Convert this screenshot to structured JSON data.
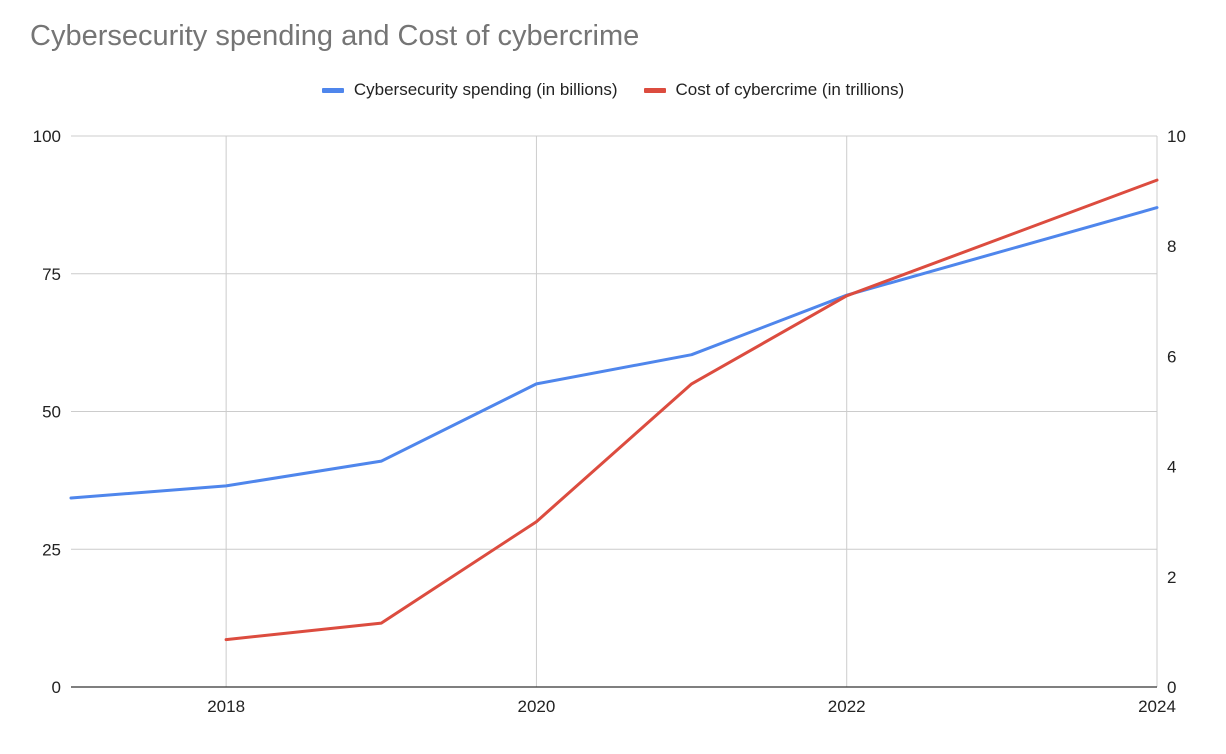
{
  "chart_data": {
    "type": "line",
    "title": "Cybersecurity spending and Cost of cybercrime",
    "xlabel": "",
    "ylabel": "",
    "y2label": "",
    "x": [
      2017,
      2018,
      2019,
      2020,
      2021,
      2022,
      2024
    ],
    "xlim": [
      2017,
      2024
    ],
    "xticks": [
      "2018",
      "2020",
      "2022",
      "2024"
    ],
    "ylim": [
      0,
      100
    ],
    "yticks": [
      "0",
      "25",
      "50",
      "75",
      "100"
    ],
    "y2lim": [
      0,
      10
    ],
    "y2ticks": [
      "0",
      "2",
      "4",
      "6",
      "8",
      "10"
    ],
    "grid": true,
    "legend_position": "top",
    "series": [
      {
        "name": "Cybersecurity spending (in billions)",
        "axis": "left",
        "color": "#4f86ec",
        "points": [
          [
            2017,
            34.3
          ],
          [
            2018,
            36.5
          ],
          [
            2019,
            41
          ],
          [
            2020,
            55
          ],
          [
            2021,
            60.3
          ],
          [
            2022,
            71.1
          ],
          [
            2024,
            87
          ]
        ]
      },
      {
        "name": "Cost of cybercrime (in trillions)",
        "axis": "right",
        "color": "#dc4c3f",
        "points": [
          [
            2018,
            0.86
          ],
          [
            2019,
            1.16
          ],
          [
            2020,
            3
          ],
          [
            2021,
            5.5
          ],
          [
            2022,
            7.1
          ],
          [
            2024,
            9.2
          ]
        ]
      }
    ]
  }
}
